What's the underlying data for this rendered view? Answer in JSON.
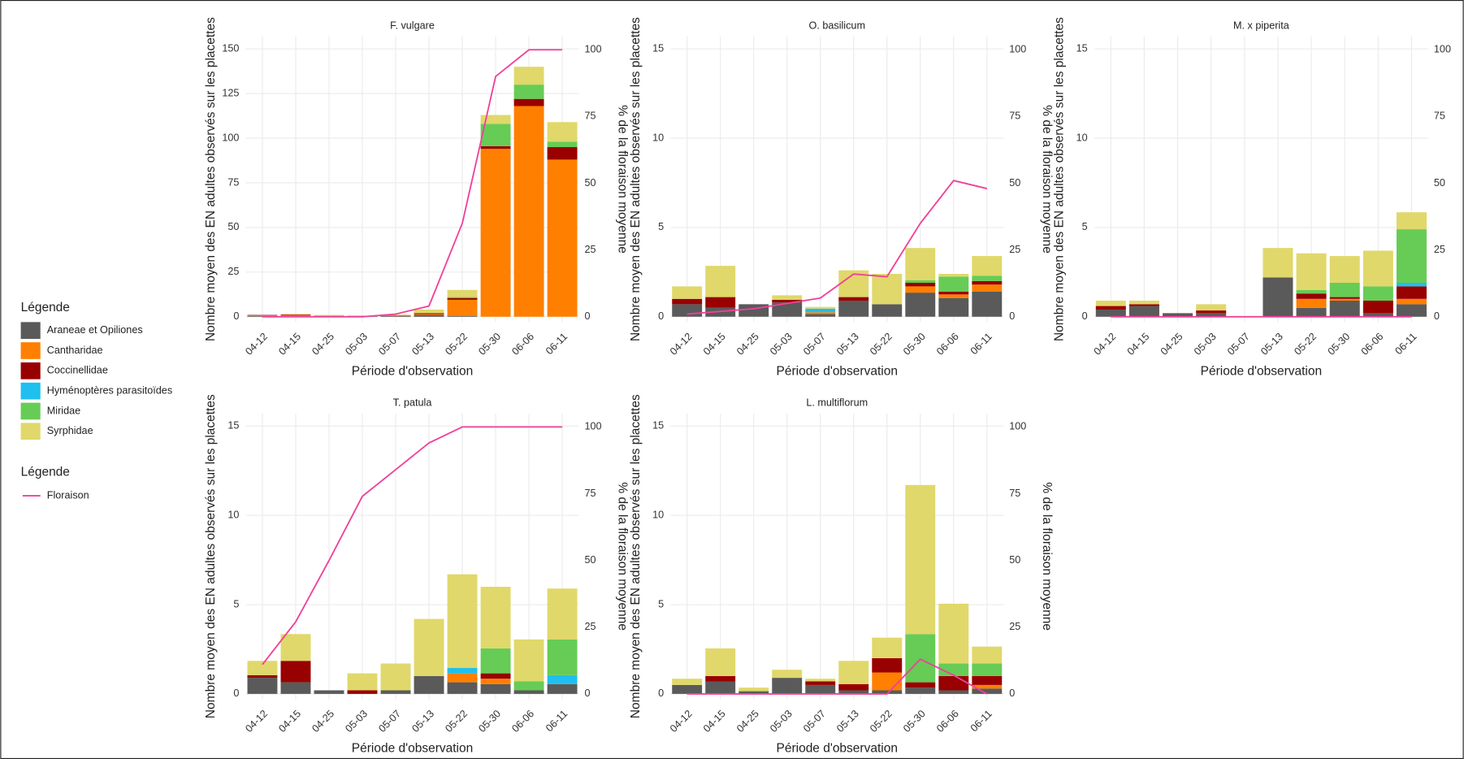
{
  "legend": {
    "titles": [
      "Légende",
      "Légende"
    ]
  },
  "chart_data": [
    {
      "type": "bar",
      "stacked": true,
      "title": "F. vulgare",
      "x_label": "Période d'observation",
      "y_label": "Nombre moyen des EN adultes observés sur les placettes",
      "y2_label": "% de la floraison moyenne",
      "grid": true,
      "categories": [
        "04-12",
        "04-15",
        "04-25",
        "05-03",
        "05-07",
        "05-13",
        "05-22",
        "05-30",
        "06-06",
        "06-11"
      ],
      "ylim": [
        -3,
        157
      ],
      "yticks": [
        0,
        25,
        50,
        75,
        100,
        125,
        150
      ],
      "y2lim": [
        -2,
        105
      ],
      "y2ticks": [
        0,
        25,
        50,
        75,
        100
      ],
      "series": [
        {
          "name": "Araneae et Opiliones",
          "color": "#5a5a5a",
          "values": [
            0.5,
            0.5,
            0.5,
            0.5,
            0.5,
            1,
            0.5,
            0,
            0,
            0
          ]
        },
        {
          "name": "Cantharidae",
          "color": "#ff7f00",
          "values": [
            0.3,
            0.5,
            0,
            0,
            0.5,
            0.5,
            9,
            94,
            118,
            88
          ]
        },
        {
          "name": "Coccinellidae",
          "color": "#990000",
          "values": [
            0.2,
            0.3,
            0,
            0,
            0,
            0.5,
            1,
            1.5,
            4,
            7
          ]
        },
        {
          "name": "Hyménoptères parasitoïdes",
          "color": "#1fbfef",
          "values": [
            0,
            0,
            0,
            0,
            0,
            0,
            0,
            0,
            0,
            0
          ]
        },
        {
          "name": "Miridae",
          "color": "#66cc55",
          "values": [
            0,
            0,
            0,
            0,
            0,
            0,
            0.5,
            12.5,
            8,
            3
          ]
        },
        {
          "name": "Syrphidae",
          "color": "#e0d86a",
          "values": [
            0,
            0.2,
            0.5,
            0,
            0,
            2,
            4,
            5,
            10,
            11
          ]
        },
        {
          "name": "Floraison",
          "type": "line",
          "axis": "y2",
          "color": "#f0409a",
          "values": [
            0,
            0,
            0,
            0,
            1,
            4,
            35,
            90,
            100,
            100
          ]
        }
      ]
    },
    {
      "type": "bar",
      "stacked": true,
      "title": "O. basilicum",
      "x_label": "Période d'observation",
      "y_label": "Nombre moyen des EN adultes observés sur les placettes",
      "y2_label": "% de la floraison moyenne",
      "grid": true,
      "categories": [
        "04-12",
        "04-15",
        "04-25",
        "05-03",
        "05-07",
        "05-13",
        "05-22",
        "05-30",
        "06-06",
        "06-11"
      ],
      "ylim": [
        -0.3,
        15.7
      ],
      "yticks": [
        0,
        5,
        10,
        15
      ],
      "y2lim": [
        -2,
        105
      ],
      "y2ticks": [
        0,
        25,
        50,
        75,
        100
      ],
      "series": [
        {
          "name": "Araneae et Opiliones",
          "color": "#5a5a5a",
          "values": [
            0.7,
            0.5,
            0.7,
            0.8,
            0.15,
            0.9,
            0.7,
            1.35,
            1.05,
            1.4
          ]
        },
        {
          "name": "Cantharidae",
          "color": "#ff7f00",
          "values": [
            0,
            0,
            0,
            0,
            0.1,
            0,
            0,
            0.35,
            0.2,
            0.4
          ]
        },
        {
          "name": "Coccinellidae",
          "color": "#990000",
          "values": [
            0.3,
            0.6,
            0,
            0.15,
            0,
            0.2,
            0,
            0.2,
            0.15,
            0.2
          ]
        },
        {
          "name": "Hyménoptères parasitoïdes",
          "color": "#1fbfef",
          "values": [
            0,
            0,
            0,
            0,
            0.2,
            0,
            0,
            0,
            0,
            0
          ]
        },
        {
          "name": "Miridae",
          "color": "#66cc55",
          "values": [
            0,
            0,
            0,
            0,
            0,
            0,
            0,
            0.15,
            0.85,
            0.3
          ]
        },
        {
          "name": "Syrphidae",
          "color": "#e0d86a",
          "values": [
            0.7,
            1.75,
            0,
            0.25,
            0.1,
            1.5,
            1.7,
            1.8,
            0.15,
            1.1
          ]
        },
        {
          "name": "Floraison",
          "type": "line",
          "axis": "y2",
          "color": "#f0409a",
          "values": [
            1,
            2,
            3,
            5,
            7,
            16,
            15,
            35,
            51,
            48
          ]
        }
      ]
    },
    {
      "type": "bar",
      "stacked": true,
      "title": "M. x piperita",
      "x_label": "Période d'observation",
      "y_label": "Nombre moyen des EN adultes observés sur les placettes",
      "y2_label": "% de la floraison moyenne",
      "grid": true,
      "categories": [
        "04-12",
        "04-15",
        "04-25",
        "05-03",
        "05-07",
        "05-13",
        "05-22",
        "05-30",
        "06-06",
        "06-11"
      ],
      "ylim": [
        -0.3,
        15.7
      ],
      "yticks": [
        0,
        5,
        10,
        15
      ],
      "y2lim": [
        -2,
        105
      ],
      "y2ticks": [
        0,
        25,
        50,
        75,
        100
      ],
      "series": [
        {
          "name": "Araneae et Opiliones",
          "color": "#5a5a5a",
          "values": [
            0.4,
            0.6,
            0.2,
            0.2,
            0,
            2.2,
            0.5,
            0.9,
            0.2,
            0.7
          ]
        },
        {
          "name": "Cantharidae",
          "color": "#ff7f00",
          "values": [
            0,
            0,
            0,
            0,
            0,
            0,
            0.5,
            0.1,
            0,
            0.3
          ]
        },
        {
          "name": "Coccinellidae",
          "color": "#990000",
          "values": [
            0.2,
            0.1,
            0,
            0.15,
            0,
            0,
            0.3,
            0.1,
            0.7,
            0.7
          ]
        },
        {
          "name": "Hyménoptères parasitoïdes",
          "color": "#1fbfef",
          "values": [
            0,
            0,
            0,
            0,
            0,
            0,
            0,
            0,
            0,
            0.2
          ]
        },
        {
          "name": "Miridae",
          "color": "#66cc55",
          "values": [
            0,
            0,
            0,
            0,
            0,
            0,
            0.2,
            0.8,
            0.8,
            3
          ]
        },
        {
          "name": "Syrphidae",
          "color": "#e0d86a",
          "values": [
            0.3,
            0.2,
            0,
            0.35,
            0,
            1.65,
            2.05,
            1.5,
            2,
            0.95
          ]
        },
        {
          "name": "Floraison",
          "type": "line",
          "axis": "y2",
          "color": "#f0409a",
          "values": [
            0,
            0,
            0,
            0,
            0,
            0,
            0,
            0,
            0,
            0
          ]
        }
      ]
    },
    {
      "type": "bar",
      "stacked": true,
      "title": "T. patula",
      "x_label": "Période d'observation",
      "y_label": "Nombre moyen des EN adultes observés sur les placettes",
      "y2_label": "% de la floraison moyenne",
      "grid": true,
      "categories": [
        "04-12",
        "04-15",
        "04-25",
        "05-03",
        "05-07",
        "05-13",
        "05-22",
        "05-30",
        "06-06",
        "06-11"
      ],
      "ylim": [
        -0.3,
        15.7
      ],
      "yticks": [
        0,
        5,
        10,
        15
      ],
      "y2lim": [
        -2,
        105
      ],
      "y2ticks": [
        0,
        25,
        50,
        75,
        100
      ],
      "series": [
        {
          "name": "Araneae et Opiliones",
          "color": "#5a5a5a",
          "values": [
            0.9,
            0.65,
            0.2,
            0,
            0.2,
            1,
            0.65,
            0.55,
            0.2,
            0.55
          ]
        },
        {
          "name": "Cantharidae",
          "color": "#ff7f00",
          "values": [
            0,
            0,
            0,
            0,
            0,
            0,
            0.5,
            0.3,
            0,
            0
          ]
        },
        {
          "name": "Coccinellidae",
          "color": "#990000",
          "values": [
            0.15,
            1.2,
            0,
            0.2,
            0,
            0,
            0,
            0.3,
            0,
            0
          ]
        },
        {
          "name": "Hyménoptères parasitoïdes",
          "color": "#1fbfef",
          "values": [
            0,
            0,
            0,
            0,
            0,
            0,
            0.3,
            0,
            0,
            0.5
          ]
        },
        {
          "name": "Miridae",
          "color": "#66cc55",
          "values": [
            0,
            0,
            0,
            0,
            0,
            0,
            0,
            1.4,
            0.5,
            2
          ]
        },
        {
          "name": "Syrphidae",
          "color": "#e0d86a",
          "values": [
            0.8,
            1.5,
            0,
            0.95,
            1.5,
            3.2,
            5.25,
            3.45,
            2.35,
            2.85
          ]
        },
        {
          "name": "Floraison",
          "type": "line",
          "axis": "y2",
          "color": "#f0409a",
          "values": [
            11,
            27,
            50,
            74,
            84,
            94,
            100,
            100,
            100,
            100
          ]
        }
      ]
    },
    {
      "type": "bar",
      "stacked": true,
      "title": "L. multiflorum",
      "x_label": "Période d'observation",
      "y_label": "Nombre moyen des EN adultes observés sur les placettes",
      "y2_label": "% de la floraison moyenne",
      "grid": true,
      "categories": [
        "04-12",
        "04-15",
        "04-25",
        "05-03",
        "05-07",
        "05-13",
        "05-22",
        "05-30",
        "06-06",
        "06-11"
      ],
      "ylim": [
        -0.3,
        15.7
      ],
      "yticks": [
        0,
        5,
        10,
        15
      ],
      "y2lim": [
        -2,
        105
      ],
      "y2ticks": [
        0,
        25,
        50,
        75,
        100
      ],
      "series": [
        {
          "name": "Araneae et Opiliones",
          "color": "#5a5a5a",
          "values": [
            0.5,
            0.7,
            0.15,
            0.9,
            0.5,
            0.2,
            0.2,
            0.35,
            0.2,
            0.3
          ]
        },
        {
          "name": "Cantharidae",
          "color": "#ff7f00",
          "values": [
            0,
            0,
            0,
            0,
            0,
            0,
            1,
            0,
            0,
            0.2
          ]
        },
        {
          "name": "Coccinellidae",
          "color": "#990000",
          "values": [
            0,
            0.3,
            0,
            0,
            0.2,
            0.35,
            0.8,
            0.3,
            0.8,
            0.5
          ]
        },
        {
          "name": "Hyménoptères parasitoïdes",
          "color": "#1fbfef",
          "values": [
            0,
            0,
            0,
            0,
            0,
            0,
            0,
            0,
            0,
            0
          ]
        },
        {
          "name": "Miridae",
          "color": "#66cc55",
          "values": [
            0,
            0,
            0,
            0,
            0,
            0,
            0,
            2.7,
            0.7,
            0.7
          ]
        },
        {
          "name": "Syrphidae",
          "color": "#e0d86a",
          "values": [
            0.35,
            1.55,
            0.2,
            0.45,
            0.15,
            1.3,
            1.15,
            8.35,
            3.35,
            0.95
          ]
        },
        {
          "name": "Floraison",
          "type": "line",
          "axis": "y2",
          "color": "#f0409a",
          "values": [
            0,
            0,
            0,
            0,
            0,
            0,
            0,
            13,
            7,
            0
          ]
        }
      ]
    }
  ]
}
